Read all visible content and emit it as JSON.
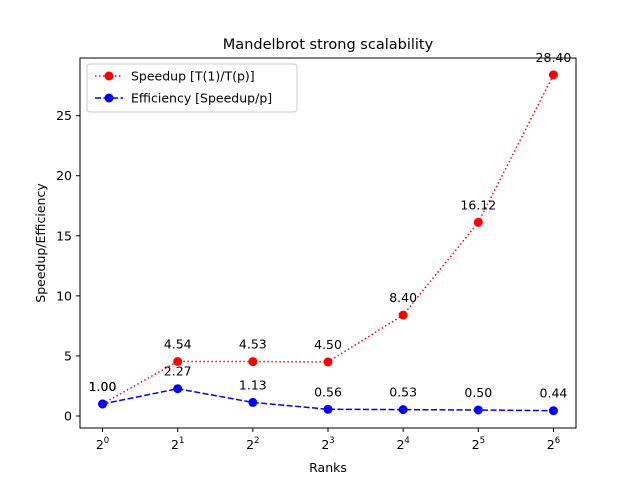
{
  "chart_data": {
    "type": "line",
    "title": "Mandelbrot strong scalability",
    "xlabel": "Ranks",
    "ylabel": "Speedup/Efficiency",
    "x_scale": "log2",
    "x": [
      1,
      2,
      4,
      8,
      16,
      32,
      64
    ],
    "x_tick_labels": [
      {
        "base": "2",
        "exp": "0"
      },
      {
        "base": "2",
        "exp": "1"
      },
      {
        "base": "2",
        "exp": "2"
      },
      {
        "base": "2",
        "exp": "3"
      },
      {
        "base": "2",
        "exp": "4"
      },
      {
        "base": "2",
        "exp": "5"
      },
      {
        "base": "2",
        "exp": "6"
      }
    ],
    "ylim": [
      -1.0,
      29.8
    ],
    "y_ticks": [
      0,
      5,
      10,
      15,
      20,
      25
    ],
    "grid": false,
    "legend": "top-left",
    "series": [
      {
        "name": "Speedup [T(1)/T(p)]",
        "color": "#ff0000",
        "linestyle": "dotted",
        "marker": "circle",
        "values": [
          1.0,
          4.54,
          4.53,
          4.5,
          8.4,
          16.12,
          28.4
        ],
        "labels": [
          "1.00",
          "4.54",
          "4.53",
          "4.50",
          "8.40",
          "16.12",
          "28.40"
        ]
      },
      {
        "name": "Efficiency [Speedup/p]",
        "color": "#0000ff",
        "linestyle": "dashed",
        "marker": "circle",
        "values": [
          1.0,
          2.27,
          1.13,
          0.56,
          0.53,
          0.5,
          0.44
        ],
        "labels": [
          "1.00",
          "2.27",
          "1.13",
          "0.56",
          "0.53",
          "0.50",
          "0.44"
        ]
      }
    ]
  }
}
